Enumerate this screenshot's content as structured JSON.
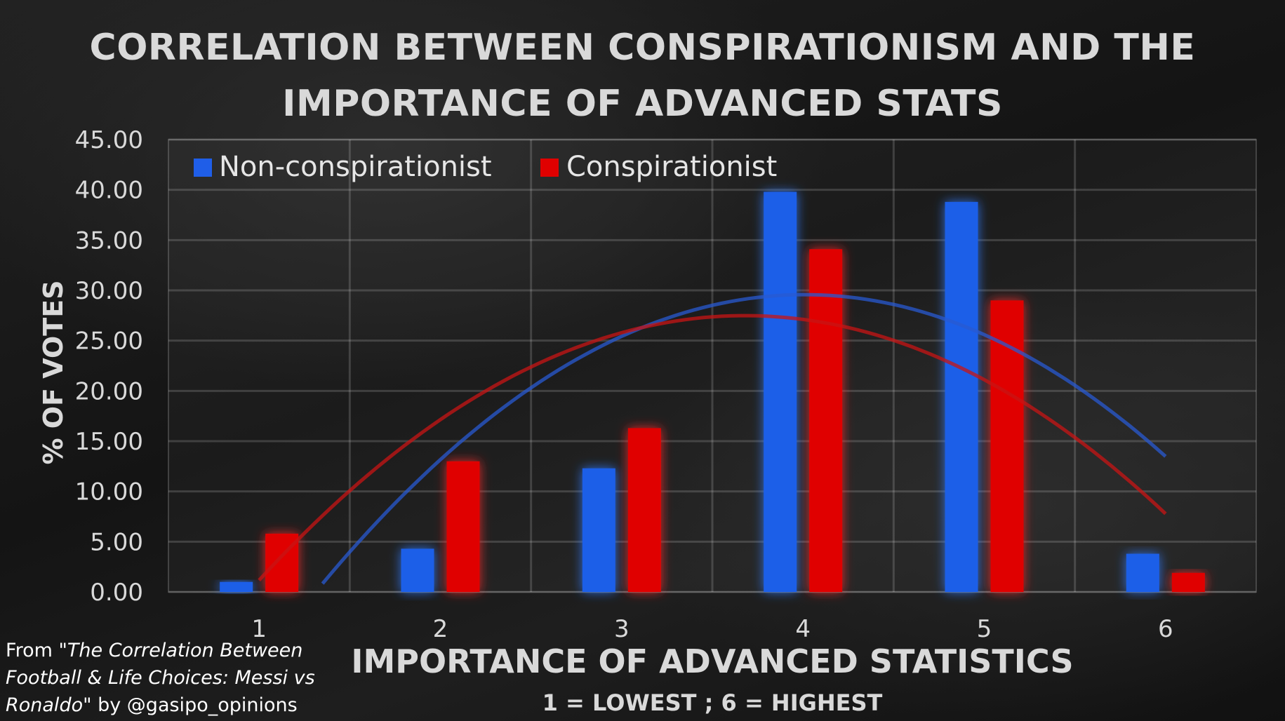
{
  "chart_data": {
    "type": "bar",
    "title_lines": [
      "CORRELATION BETWEEN CONSPIRATIONISM AND THE",
      "IMPORTANCE OF ADVANCED STATS"
    ],
    "xlabel": "IMPORTANCE OF ADVANCED STATISTICS",
    "xlabel_sub": "1 = LOWEST ; 6 = HIGHEST",
    "ylabel": "% OF VOTES",
    "categories": [
      "1",
      "2",
      "3",
      "4",
      "5",
      "6"
    ],
    "ylim": [
      0,
      45
    ],
    "yticks": [
      "0.00",
      "5.00",
      "10.00",
      "15.00",
      "20.00",
      "25.00",
      "30.00",
      "35.00",
      "40.00",
      "45.00"
    ],
    "series": [
      {
        "name": "Non-conspirationist",
        "color": "#1f5ee8",
        "values": [
          1.0,
          4.3,
          12.3,
          39.8,
          38.8,
          3.8
        ]
      },
      {
        "name": "Conspirationist",
        "color": "#e00000",
        "values": [
          5.8,
          13.0,
          16.3,
          34.1,
          29.0,
          1.9
        ]
      }
    ],
    "trendlines": "polynomial",
    "legend_position": "top-left",
    "grid": true
  },
  "source_note": {
    "prefix": "From \"",
    "title": "The Correlation Between Football & Life Choices: Messi vs Ronaldo",
    "suffix": "\" by @gasipo_opinions"
  }
}
